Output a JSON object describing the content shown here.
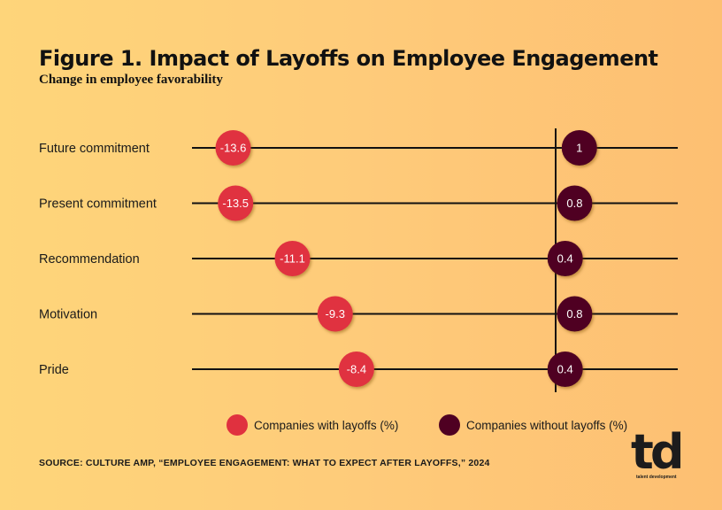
{
  "header": {
    "title": "Figure 1. Impact of Layoffs on Employee Engagement",
    "subtitle": "Change in employee favorability"
  },
  "chart_data": {
    "type": "dot",
    "title": "Figure 1. Impact of Layoffs on Employee Engagement",
    "subtitle": "Change in employee favorability",
    "categories": [
      "Future commitment",
      "Present commitment",
      "Recommendation",
      "Motivation",
      "Pride"
    ],
    "series": [
      {
        "name": "Companies with layoffs (%)",
        "color": "#e0313f",
        "values": [
          -13.6,
          -13.5,
          -11.1,
          -9.3,
          -8.4
        ]
      },
      {
        "name": "Companies without layoffs (%)",
        "color": "#4f0022",
        "values": [
          1,
          0.8,
          0.4,
          0.8,
          0.4
        ]
      }
    ],
    "xlim": [
      -15,
      5
    ],
    "zero_line": true,
    "legend": "bottom",
    "grid": false
  },
  "legend": {
    "items": [
      {
        "label": "Companies with layoffs (%)",
        "color": "#e0313f"
      },
      {
        "label": "Companies without layoffs (%)",
        "color": "#4f0022"
      }
    ]
  },
  "footer": {
    "source": "SOURCE: CULTURE AMP, “EMPLOYEE ENGAGEMENT: WHAT TO EXPECT AFTER LAYOFFS,” 2024",
    "logo_mark": "td",
    "logo_tagline": "talent development"
  }
}
